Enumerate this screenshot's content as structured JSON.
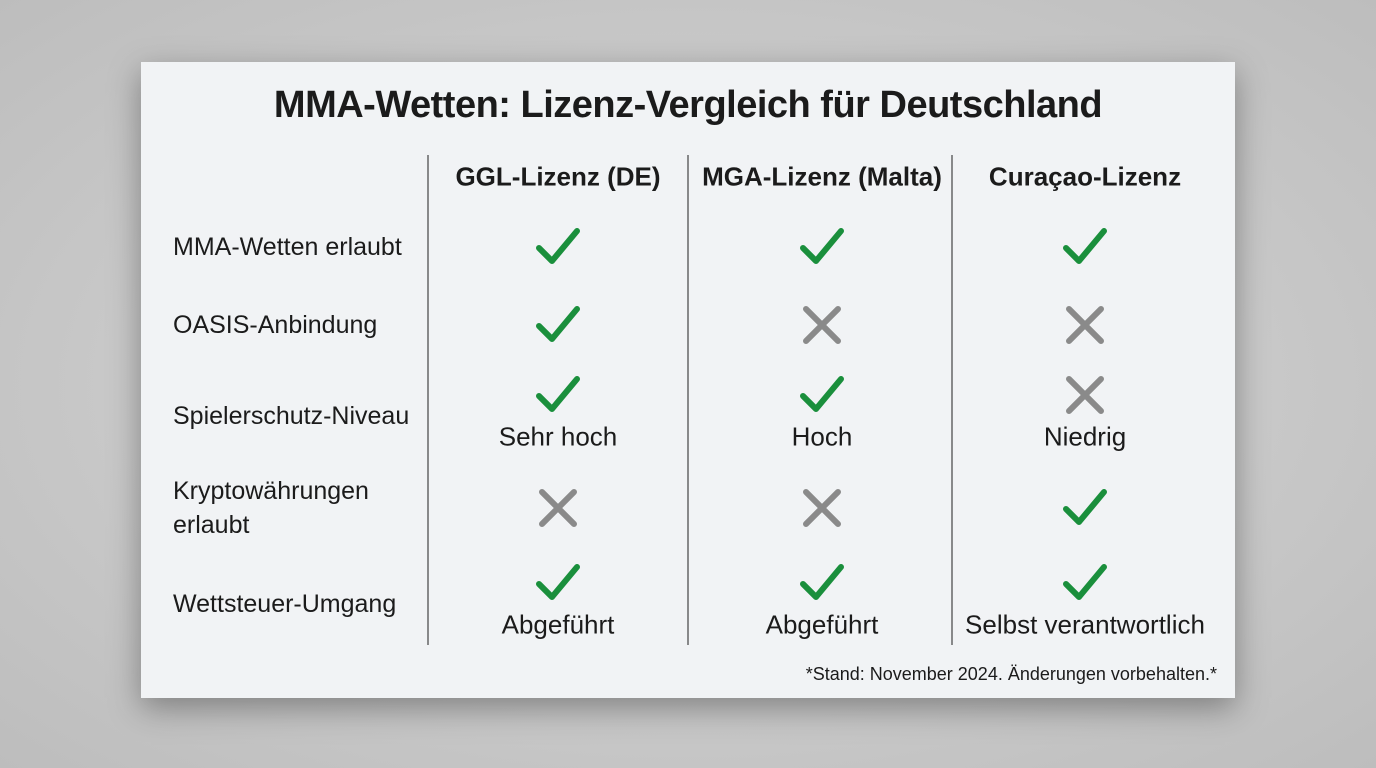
{
  "title": "MMA-Wetten: Lizenz-Vergleich für Deutschland",
  "columns": [
    "GGL-Lizenz (DE)",
    "MGA-Lizenz (Malta)",
    "Curaçao-Lizenz"
  ],
  "rows": [
    {
      "label": "MMA-Wetten erlaubt",
      "cells": [
        {
          "status": "check"
        },
        {
          "status": "check"
        },
        {
          "status": "check"
        }
      ]
    },
    {
      "label": "OASIS-Anbindung",
      "cells": [
        {
          "status": "check"
        },
        {
          "status": "cross"
        },
        {
          "status": "cross"
        }
      ]
    },
    {
      "label": "Spielerschutz-Niveau",
      "cells": [
        {
          "status": "check",
          "note": "Sehr hoch"
        },
        {
          "status": "check",
          "note": "Hoch"
        },
        {
          "status": "cross",
          "note": "Niedrig"
        }
      ]
    },
    {
      "label": "Kryptowährungen erlaubt",
      "cells": [
        {
          "status": "cross"
        },
        {
          "status": "cross"
        },
        {
          "status": "check"
        }
      ]
    },
    {
      "label": "Wettsteuer-Umgang",
      "cells": [
        {
          "status": "check",
          "note": "Abgeführt"
        },
        {
          "status": "check",
          "note": "Abgeführt"
        },
        {
          "status": "check",
          "note": "Selbst verantwortlich"
        }
      ]
    }
  ],
  "footnote": "*Stand: November 2024. Änderungen vorbehalten.*"
}
